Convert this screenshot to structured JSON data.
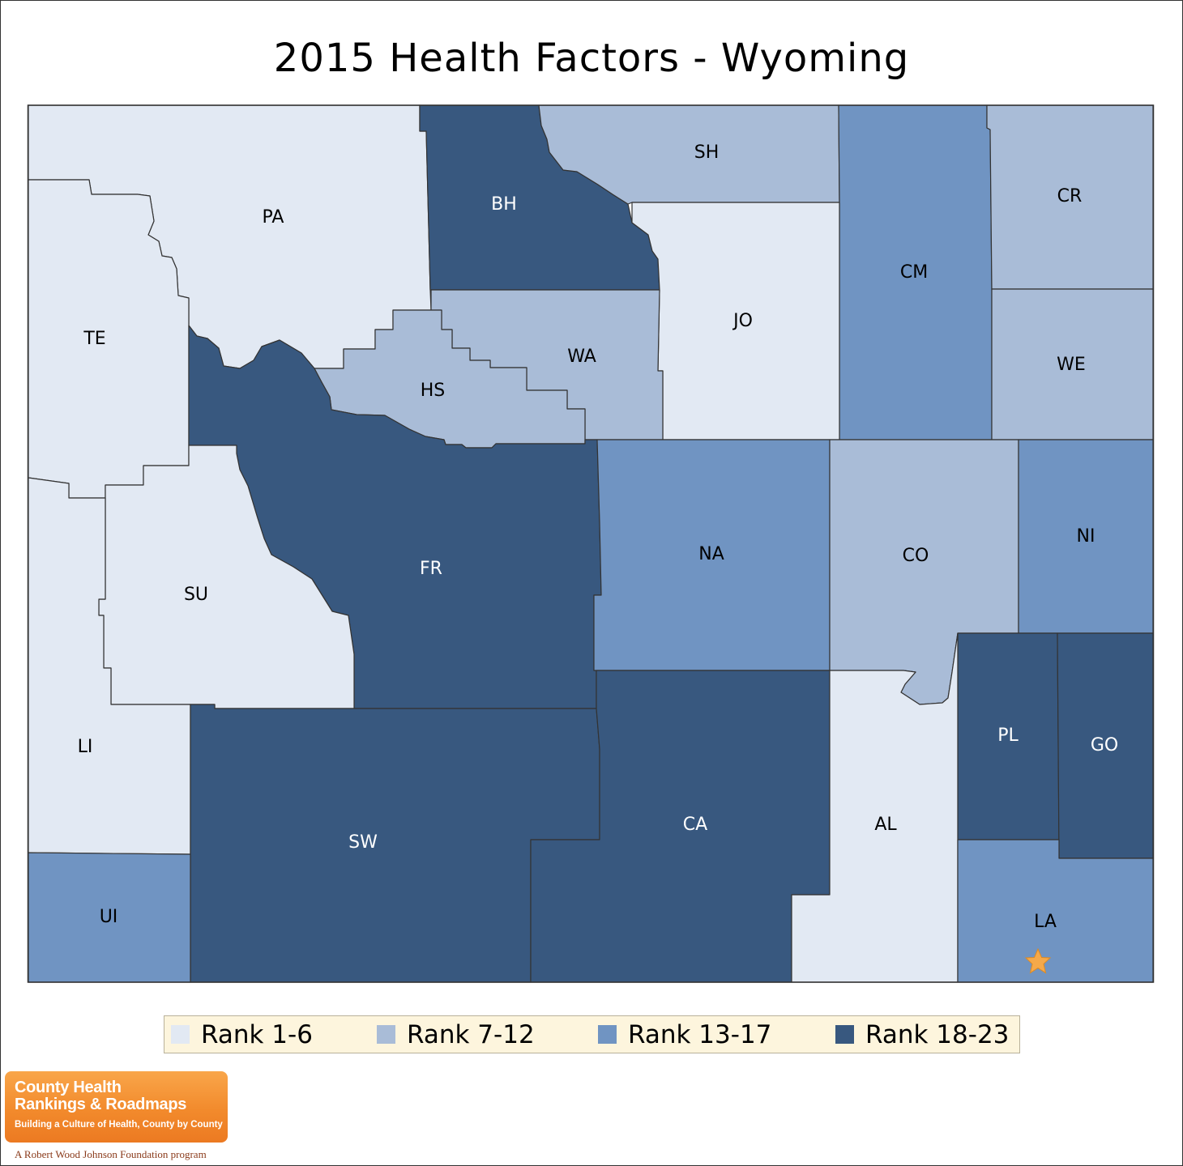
{
  "title": "2015 Health Factors - Wyoming",
  "colors": {
    "rank_1_6": "#e2e9f3",
    "rank_7_12": "#a9bcd7",
    "rank_13_17": "#7094c2",
    "rank_18_23": "#38587f",
    "outline": "#333333",
    "star": "#f5a94a"
  },
  "legend": [
    {
      "label": "Rank 1-6",
      "tier": "rank_1_6"
    },
    {
      "label": "Rank 7-12",
      "tier": "rank_7_12"
    },
    {
      "label": "Rank 13-17",
      "tier": "rank_13_17"
    },
    {
      "label": "Rank 18-23",
      "tier": "rank_18_23"
    }
  ],
  "counties": [
    {
      "code": "PA",
      "tier": "rank_1_6"
    },
    {
      "code": "BH",
      "tier": "rank_18_23"
    },
    {
      "code": "SH",
      "tier": "rank_7_12"
    },
    {
      "code": "CM",
      "tier": "rank_13_17"
    },
    {
      "code": "CR",
      "tier": "rank_7_12"
    },
    {
      "code": "TE",
      "tier": "rank_1_6"
    },
    {
      "code": "JO",
      "tier": "rank_1_6"
    },
    {
      "code": "WA",
      "tier": "rank_7_12"
    },
    {
      "code": "HS",
      "tier": "rank_7_12"
    },
    {
      "code": "WE",
      "tier": "rank_7_12"
    },
    {
      "code": "FR",
      "tier": "rank_18_23"
    },
    {
      "code": "NA",
      "tier": "rank_13_17"
    },
    {
      "code": "CO",
      "tier": "rank_7_12"
    },
    {
      "code": "NI",
      "tier": "rank_13_17"
    },
    {
      "code": "SU",
      "tier": "rank_1_6"
    },
    {
      "code": "LI",
      "tier": "rank_1_6"
    },
    {
      "code": "PL",
      "tier": "rank_18_23"
    },
    {
      "code": "GO",
      "tier": "rank_18_23"
    },
    {
      "code": "SW",
      "tier": "rank_18_23"
    },
    {
      "code": "CA",
      "tier": "rank_18_23"
    },
    {
      "code": "AL",
      "tier": "rank_1_6"
    },
    {
      "code": "UI",
      "tier": "rank_13_17"
    },
    {
      "code": "LA",
      "tier": "rank_13_17"
    }
  ],
  "capital_marker": {
    "county": "LA",
    "icon": "star-icon"
  },
  "logo": {
    "line1": "County Health",
    "line2": "Rankings & Roadmaps",
    "tagline": "Building a Culture of Health, County by County",
    "program": "A Robert Wood Johnson Foundation program"
  }
}
